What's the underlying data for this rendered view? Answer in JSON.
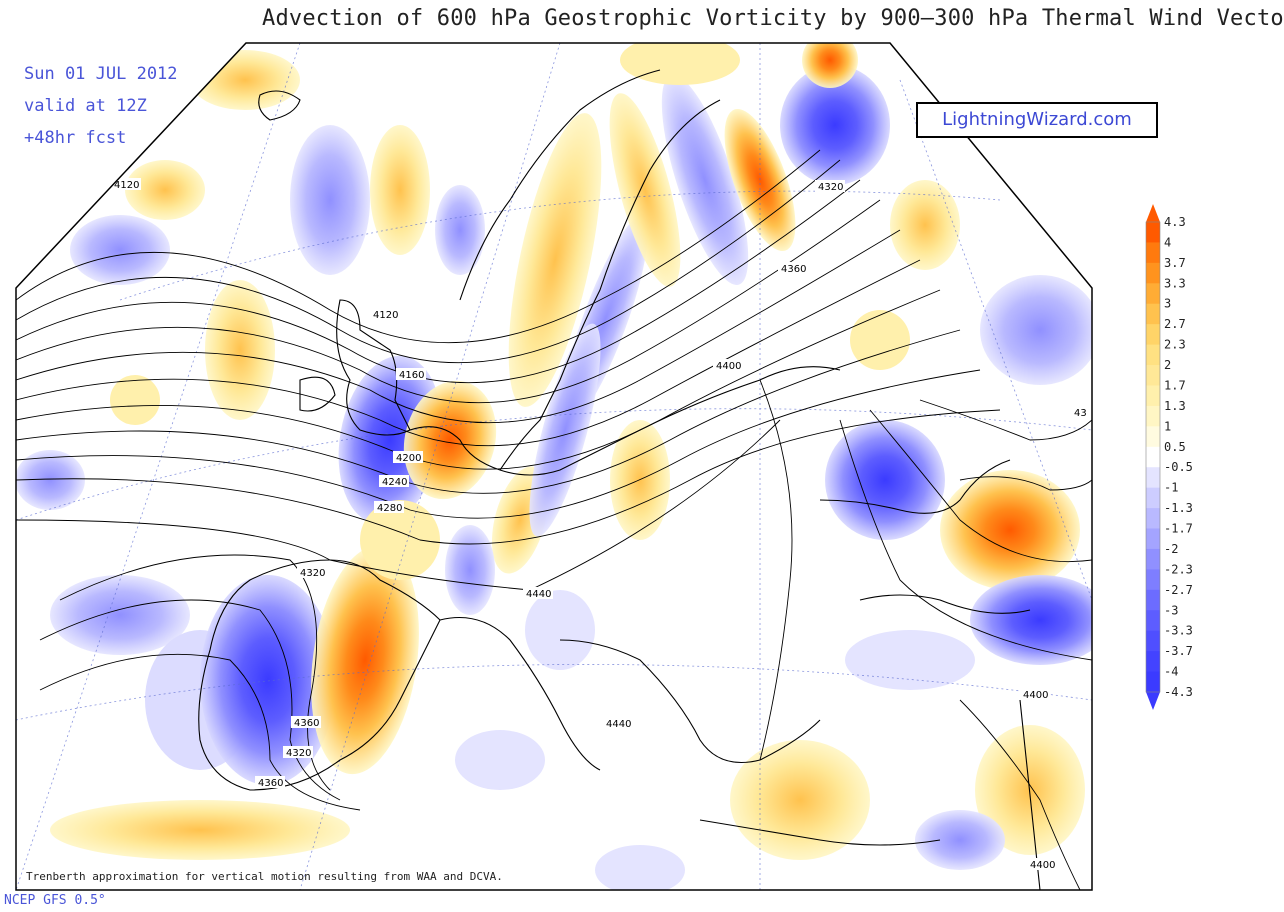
{
  "title": "Advection of 600 hPa Geostrophic Vorticity by 900—300 hPa Thermal Wind Vecto",
  "run": {
    "date": "Sun 01 JUL 2012",
    "valid": "valid at 12Z",
    "forecast": "+48hr fcst"
  },
  "brand": "LightningWizard.com",
  "footnote": "Trenberth approximation for vertical motion resulting from WAA and DCVA.",
  "source": "NCEP GFS 0.5°",
  "colors": {
    "positive_max": "#ff5a00",
    "negative_max": "#3b3bff",
    "neutral": "#ffffff",
    "coastline": "#000000",
    "contour": "#000000",
    "text_accent": "#4a55d8"
  },
  "colorbar": {
    "max": "4.3",
    "min": "-4.3",
    "labels": [
      "4.3",
      "4",
      "3.7",
      "3.3",
      "3",
      "2.7",
      "2.3",
      "2",
      "1.7",
      "1.3",
      "1",
      "0.5",
      "-0.5",
      "-1",
      "-1.3",
      "-1.7",
      "-2",
      "-2.3",
      "-2.7",
      "-3",
      "-3.3",
      "-3.7",
      "-4",
      "-4.3"
    ],
    "bands": [
      "#ff5a00",
      "#ff7a0e",
      "#ff931e",
      "#ffac35",
      "#ffc24e",
      "#ffd468",
      "#ffe182",
      "#ffe897",
      "#fff0ac",
      "#fff6c4",
      "#fffbe0",
      "#ffffff",
      "#e4e4ff",
      "#cdcdff",
      "#b9b9ff",
      "#a4a4ff",
      "#9090ff",
      "#7e7eff",
      "#6c6cff",
      "#5d5dff",
      "#4f4fff",
      "#4343ff",
      "#3b3bff"
    ]
  },
  "contour_labels": [
    "4120",
    "4320",
    "4120",
    "4160",
    "4200",
    "4240",
    "4280",
    "4320",
    "4360",
    "4400",
    "4440",
    "4440",
    "4400",
    "4360",
    "4320",
    "4360",
    "4400",
    "43"
  ],
  "features": [
    {
      "name": "iberia-negative-low",
      "sign": "negative",
      "strength": 4.3
    },
    {
      "name": "iberia-positive-east",
      "sign": "positive",
      "strength": 4.3
    },
    {
      "name": "channel-negative",
      "sign": "negative",
      "strength": 3.7
    },
    {
      "name": "benelux-positive",
      "sign": "positive",
      "strength": 3.3
    },
    {
      "name": "scandinavia-positive",
      "sign": "positive",
      "strength": 3.0
    },
    {
      "name": "finland-negative",
      "sign": "negative",
      "strength": 3.3
    },
    {
      "name": "black-sea-negative",
      "sign": "negative",
      "strength": 2.7
    },
    {
      "name": "caspian-negative",
      "sign": "negative",
      "strength": 3.3
    }
  ]
}
